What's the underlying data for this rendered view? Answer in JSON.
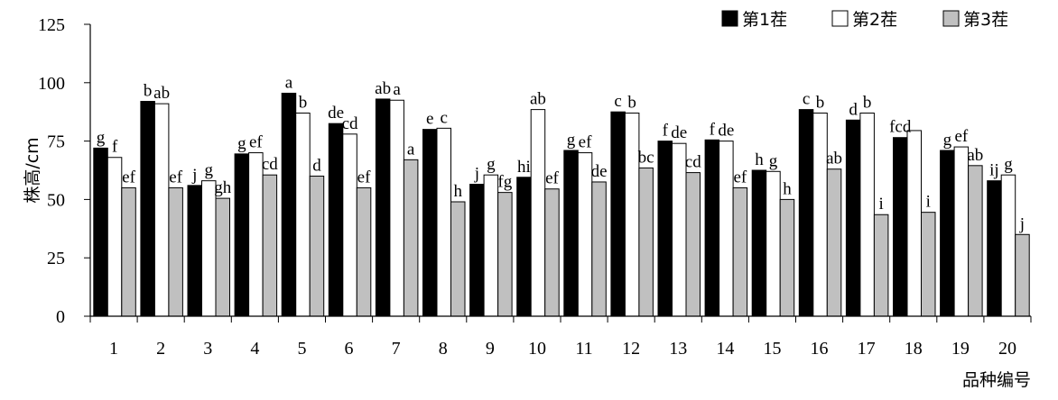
{
  "chart_data": {
    "type": "bar",
    "title": "",
    "xlabel": "品种编号",
    "ylabel": "株高/cm",
    "ylim": [
      0,
      125
    ],
    "yticks": [
      0,
      25,
      50,
      75,
      100,
      125
    ],
    "grid": false,
    "legend_position": "top-right",
    "categories": [
      "1",
      "2",
      "3",
      "4",
      "5",
      "6",
      "7",
      "8",
      "9",
      "10",
      "11",
      "12",
      "13",
      "14",
      "15",
      "16",
      "17",
      "18",
      "19",
      "20"
    ],
    "series": [
      {
        "name": "第1茬",
        "color": "#000000",
        "values": [
          72,
          92,
          56,
          69.5,
          95.5,
          82.5,
          93,
          80,
          56.5,
          59.5,
          71,
          87.5,
          75,
          75.5,
          62.5,
          88.5,
          84,
          76.5,
          71,
          58
        ],
        "labels": [
          "g",
          "b",
          "j",
          "g",
          "a",
          "de",
          "ab",
          "e",
          "j",
          "hi",
          "g",
          "c",
          "f",
          "f",
          "h",
          "c",
          "d",
          "fcd",
          "g",
          "ij"
        ]
      },
      {
        "name": "第2茬",
        "color": "#ffffff",
        "values": [
          68,
          91,
          58,
          70,
          87,
          78,
          92.5,
          80.5,
          60.5,
          88.5,
          70,
          87,
          74,
          75,
          62,
          87,
          87,
          79.5,
          72.5,
          60.5
        ],
        "labels": [
          "f",
          "ab",
          "g",
          "ef",
          "b",
          "cd",
          "a",
          "c",
          "g",
          "ab",
          "ef",
          "b",
          "de",
          "de",
          "g",
          "b",
          "b",
          "",
          "ef",
          "g"
        ]
      },
      {
        "name": "第3茬",
        "color": "#c0c0c0",
        "values": [
          55,
          55,
          50.5,
          60.5,
          60,
          55,
          67,
          49,
          53,
          54.5,
          57.5,
          63.5,
          61.5,
          55,
          50,
          63,
          43.5,
          44.5,
          64.5,
          35
        ],
        "labels": [
          "ef",
          "ef",
          "gh",
          "cd",
          "d",
          "ef",
          "a",
          "h",
          "fg",
          "ef",
          "de",
          "bc",
          "cd",
          "ef",
          "h",
          "ab",
          "i",
          "i",
          "ab",
          "j"
        ]
      }
    ]
  }
}
